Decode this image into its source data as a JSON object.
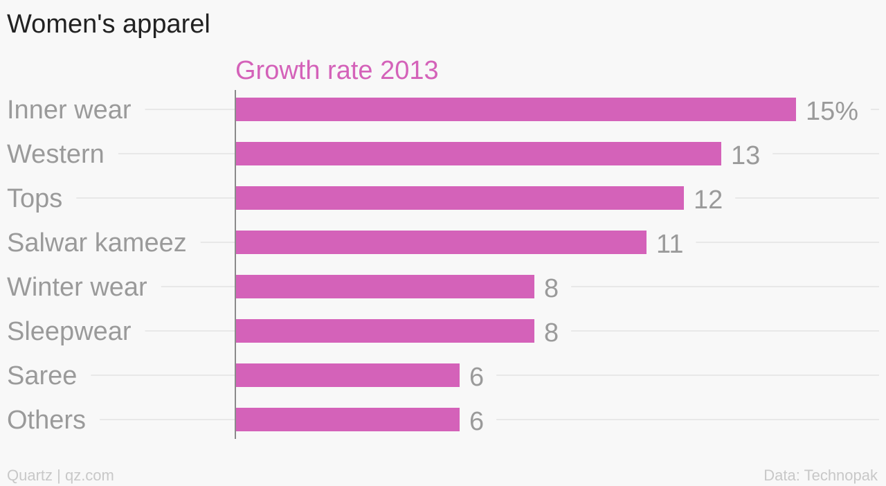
{
  "header": {
    "title": "Women's apparel"
  },
  "footer": {
    "source_left": "Quartz | qz.com",
    "source_right": "Data: Technopak"
  },
  "colors": {
    "bar": "#d462b9",
    "series_label": "#d462b9",
    "label_text": "#9a9a9a",
    "gridline": "#e8e8e8",
    "axis": "#8a8a8a"
  },
  "chart_data": {
    "type": "bar",
    "orientation": "horizontal",
    "title": "Women's apparel",
    "series_label": "Growth rate 2013",
    "categories": [
      "Inner wear",
      "Western",
      "Tops",
      "Salwar kameez",
      "Winter wear",
      "Sleepwear",
      "Saree",
      "Others"
    ],
    "values": [
      15,
      13,
      12,
      11,
      8,
      8,
      6,
      6
    ],
    "value_labels": [
      "15%",
      "13",
      "12",
      "11",
      "8",
      "8",
      "6",
      "6"
    ],
    "xlim": [
      0,
      15
    ],
    "grid": true,
    "legend": "none"
  }
}
